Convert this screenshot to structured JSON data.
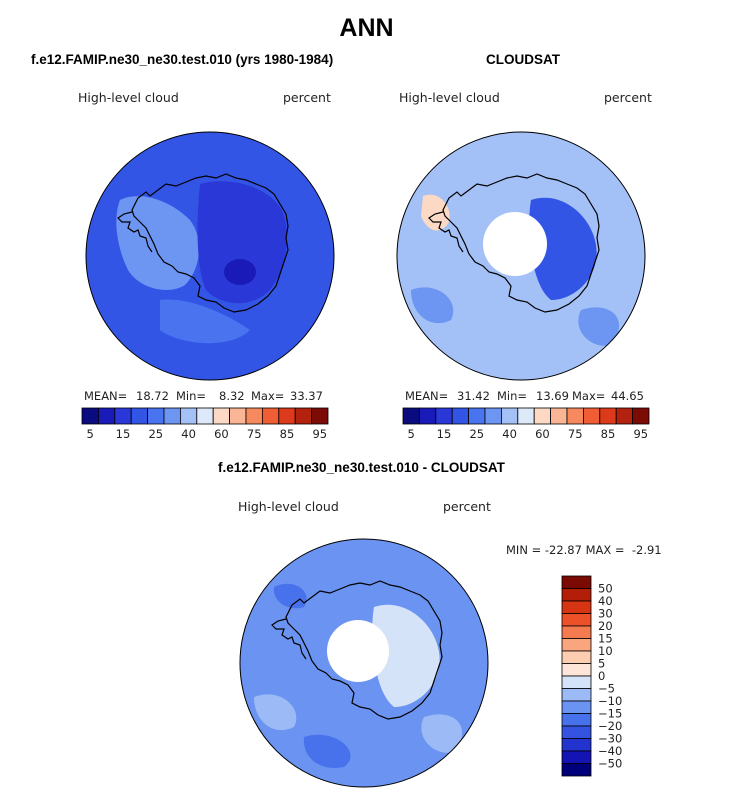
{
  "title": "ANN",
  "panels": [
    {
      "case_title": "f.e12.FAMIP.ne30_ne30.test.010 (yrs 1980-1984)",
      "variable": "High-level cloud",
      "units": "percent",
      "stats": {
        "mean_label": "MEAN=",
        "mean": "18.72",
        "min_label": "Min=",
        "min": "8.32",
        "max_label": "Max=",
        "max": "33.37"
      }
    },
    {
      "case_title": "CLOUDSAT",
      "variable": "High-level cloud",
      "units": "percent",
      "stats": {
        "mean_label": "MEAN=",
        "mean": "31.42",
        "min_label": "Min=",
        "min": "13.69",
        "max_label": "Max=",
        "max": "44.65"
      }
    },
    {
      "case_title": "f.e12.FAMIP.ne30_ne30.test.010 - CLOUDSAT",
      "variable": "High-level cloud",
      "units": "percent",
      "stats": {
        "minmax_text": "MIN = -22.87 MAX =  -2.91"
      }
    }
  ],
  "colors": {
    "abs_scale": [
      "#0b0b80",
      "#1a1ab8",
      "#2a38d8",
      "#3355e6",
      "#4a73ef",
      "#6d95f2",
      "#a3c0f7",
      "#dde8f8",
      "#fcd9c4",
      "#fab594",
      "#f6895e",
      "#f15d34",
      "#dc3a1b",
      "#b3220e",
      "#7c0b06"
    ],
    "diff_scale": [
      "#00007a",
      "#1414b4",
      "#2233d0",
      "#3353e0",
      "#4872ec",
      "#6b93f1",
      "#9cbaf5",
      "#d5e3f8",
      "#fde6d9",
      "#fccdb0",
      "#f9a67e",
      "#f47b4f",
      "#ec512a",
      "#d73414",
      "#b21e08",
      "#7a0a02"
    ],
    "antarctica_outline": "#000000"
  },
  "chart_data": [
    {
      "type": "heatmap",
      "subtype": "polar-stereographic filled contour map (Southern Hemisphere)",
      "title": "f.e12.FAMIP.ne30_ne30.test.010 (yrs 1980-1984)",
      "variable": "High-level cloud",
      "units": "percent",
      "colorbar_levels": [
        5,
        10,
        15,
        20,
        25,
        30,
        35,
        40,
        50,
        60,
        65,
        70,
        75,
        80,
        85,
        90,
        95
      ],
      "colorbar_tick_labels": [
        "5",
        "15",
        "25",
        "40",
        "60",
        "75",
        "85",
        "95"
      ],
      "mean": 18.72,
      "min": 8.32,
      "max": 33.37,
      "field": [
        {
          "region": "Southern Ocean background",
          "value": 17
        },
        {
          "region": "East Antarctic plateau",
          "value": 12
        },
        {
          "region": "Plateau interior minimum",
          "value": 9
        },
        {
          "region": "Antarctic Peninsula / Weddell sector",
          "value": 27
        },
        {
          "region": "Ross Sea sector",
          "value": 22
        }
      ]
    },
    {
      "type": "heatmap",
      "subtype": "polar-stereographic filled contour map (Southern Hemisphere)",
      "title": "CLOUDSAT",
      "variable": "High-level cloud",
      "units": "percent",
      "colorbar_levels": [
        5,
        10,
        15,
        20,
        25,
        30,
        35,
        40,
        50,
        60,
        65,
        70,
        75,
        80,
        85,
        90,
        95
      ],
      "colorbar_tick_labels": [
        "5",
        "15",
        "25",
        "40",
        "60",
        "75",
        "85",
        "95"
      ],
      "mean": 31.42,
      "min": 13.69,
      "max": 44.65,
      "field": [
        {
          "region": "Southern Ocean background",
          "value": 33
        },
        {
          "region": "Ocean patches",
          "value": 28
        },
        {
          "region": "East Antarctica interior",
          "value": 16
        },
        {
          "region": "Antarctic Peninsula",
          "value": 43
        },
        {
          "region": "Pole (no data)",
          "value": null
        }
      ]
    },
    {
      "type": "heatmap",
      "subtype": "polar-stereographic filled contour map (Southern Hemisphere), difference",
      "title": "f.e12.FAMIP.ne30_ne30.test.010 - CLOUDSAT",
      "variable": "High-level cloud",
      "units": "percent",
      "colorbar_levels": [
        -50,
        -40,
        -30,
        -20,
        -15,
        -10,
        -5,
        0,
        5,
        10,
        15,
        20,
        30,
        40,
        50
      ],
      "colorbar_tick_labels": [
        "50",
        "40",
        "30",
        "20",
        "15",
        "10",
        "5",
        "0",
        "−5",
        "−10",
        "−15",
        "−20",
        "−30",
        "−40",
        "−50"
      ],
      "min": -22.87,
      "max": -2.91,
      "field": [
        {
          "region": "Southern Ocean background",
          "value": -12
        },
        {
          "region": "Ocean patches",
          "value": -8
        },
        {
          "region": "Ocean patches (stronger)",
          "value": -17
        },
        {
          "region": "East Antarctica",
          "value": -4
        },
        {
          "region": "Pole (no data)",
          "value": null
        }
      ]
    }
  ]
}
